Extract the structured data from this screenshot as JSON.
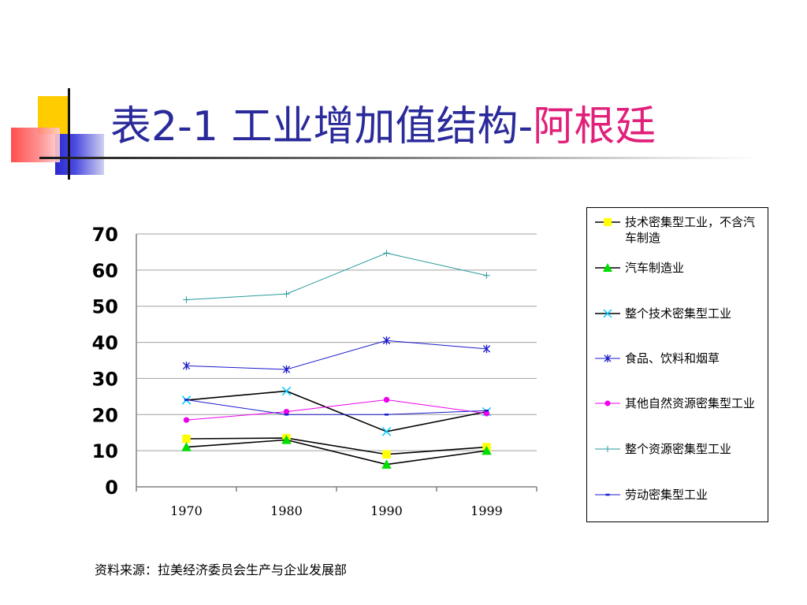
{
  "title": {
    "prefix": "表2-1 工业增加值结构-",
    "highlight": "阿根廷"
  },
  "source": "资料来源：拉美经济委员会生产与企业发展部",
  "colors": {
    "title": "#2a2a9a",
    "highlight": "#e0207a"
  },
  "chart_data": {
    "type": "line",
    "x": [
      "1970",
      "1980",
      "1990",
      "1999"
    ],
    "ylim": [
      0,
      70
    ],
    "yticks": [
      "0",
      "10",
      "20",
      "30",
      "40",
      "50",
      "60",
      "70"
    ],
    "grid": true,
    "legend_position": "right",
    "series": [
      {
        "name": "技术密集型工业，不含汽车制造",
        "values": [
          13.3,
          13.5,
          9.0,
          11.0
        ],
        "color": "#000000",
        "marker": "square",
        "marker_color": "#ffff00"
      },
      {
        "name": "汽车制造业",
        "values": [
          11.0,
          13.0,
          6.2,
          10.0
        ],
        "color": "#000000",
        "marker": "triangle",
        "marker_color": "#00dd00"
      },
      {
        "name": "整个技术密集型工业",
        "values": [
          24.0,
          26.5,
          15.3,
          20.8
        ],
        "color": "#000000",
        "marker": "x",
        "marker_color": "#00ccff"
      },
      {
        "name": "食品、饮料和烟草",
        "values": [
          33.5,
          32.5,
          40.5,
          38.2
        ],
        "color": "#1a1acc",
        "marker": "star",
        "marker_color": "#1a1acc"
      },
      {
        "name": "其他自然资源密集型工业",
        "values": [
          18.5,
          20.8,
          24.1,
          20.3
        ],
        "color": "#ee00ee",
        "marker": "circle",
        "marker_color": "#ee00ee"
      },
      {
        "name": "整个资源密集型工业",
        "values": [
          51.8,
          53.4,
          64.7,
          58.5
        ],
        "color": "#2a9a9a",
        "marker": "plus",
        "marker_color": "#2a9a9a"
      },
      {
        "name": "劳动密集型工业",
        "values": [
          24.1,
          20.0,
          20.0,
          21.1
        ],
        "color": "#1a1acc",
        "marker": "dash",
        "marker_color": "#1a1acc"
      }
    ]
  }
}
